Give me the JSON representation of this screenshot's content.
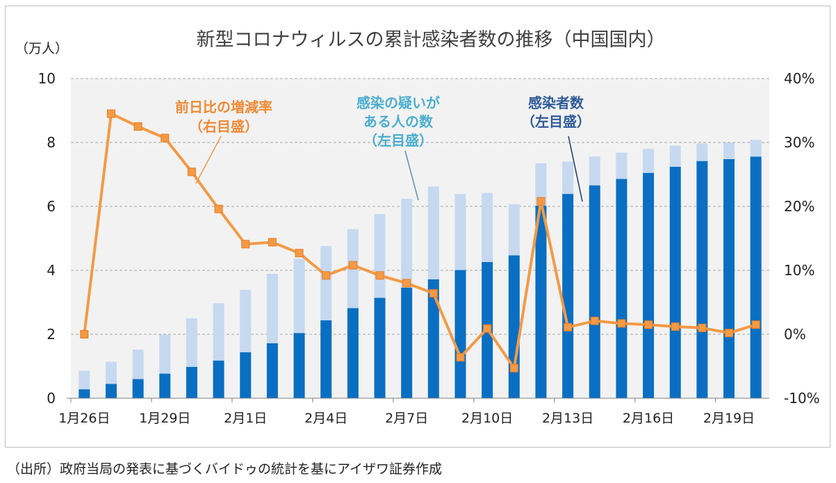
{
  "chart_data": {
    "type": "bar+line",
    "title": "新型コロナウィルスの累計感染者数の推移（中国国内）",
    "unit_left": "（万人）",
    "categories": [
      "1月26日",
      "1月27日",
      "1月28日",
      "1月29日",
      "1月30日",
      "1月31日",
      "2月1日",
      "2月2日",
      "2月3日",
      "2月4日",
      "2月5日",
      "2月6日",
      "2月7日",
      "2月8日",
      "2月9日",
      "2月10日",
      "2月11日",
      "2月12日",
      "2月13日",
      "2月14日",
      "2月15日",
      "2月16日",
      "2月17日",
      "2月18日",
      "2月19日",
      "2月20日"
    ],
    "x_tick_labels": [
      "1月26日",
      "1月29日",
      "2月1日",
      "2月4日",
      "2月7日",
      "2月10日",
      "2月13日",
      "2月16日",
      "2月19日"
    ],
    "y_left": {
      "min": 0,
      "max": 10,
      "ticks": [
        "0",
        "2",
        "4",
        "6",
        "8",
        "10"
      ]
    },
    "y_right": {
      "min": -10,
      "max": 40,
      "ticks": [
        "-10%",
        "0%",
        "10%",
        "20%",
        "30%",
        "40%"
      ]
    },
    "grid": true,
    "series": [
      {
        "name": "感染者数",
        "kind": "bar",
        "axis": "left",
        "color": "#0a6fc2",
        "values": [
          0.28,
          0.45,
          0.6,
          0.77,
          0.98,
          1.18,
          1.44,
          1.72,
          2.04,
          2.44,
          2.82,
          3.14,
          3.46,
          3.72,
          4.01,
          4.26,
          4.47,
          6.02,
          6.39,
          6.66,
          6.86,
          7.05,
          7.24,
          7.42,
          7.48,
          7.56
        ]
      },
      {
        "name": "感染の疑いがある人の数",
        "kind": "bar",
        "axis": "left",
        "color": "#c6d9f0",
        "values": [
          0.58,
          0.69,
          0.92,
          1.22,
          1.52,
          1.79,
          1.95,
          2.17,
          2.32,
          2.32,
          2.47,
          2.62,
          2.78,
          2.9,
          2.38,
          2.16,
          1.6,
          1.33,
          1.01,
          0.9,
          0.82,
          0.75,
          0.66,
          0.55,
          0.51,
          0.52
        ]
      },
      {
        "name": "前日比の増減率",
        "kind": "line",
        "axis": "right",
        "color": "#f39a46",
        "values": [
          0.0,
          34.5,
          32.5,
          30.7,
          25.4,
          19.6,
          14.1,
          14.4,
          12.7,
          9.2,
          10.8,
          9.2,
          8.0,
          6.4,
          -3.6,
          0.9,
          -5.3,
          20.8,
          1.1,
          2.1,
          1.7,
          1.5,
          1.2,
          1.0,
          0.2,
          1.5
        ]
      }
    ],
    "annotations": {
      "rate": [
        "前日比の増減率",
        "（右目盛）"
      ],
      "suspected": [
        "感染の疑いが",
        "ある人の数",
        "（左目盛）"
      ],
      "confirmed": [
        "感染者数",
        "（左目盛）"
      ]
    }
  },
  "source_note": "（出所）政府当局の発表に基づくバイドゥの統計を基にアイザワ証券作成"
}
